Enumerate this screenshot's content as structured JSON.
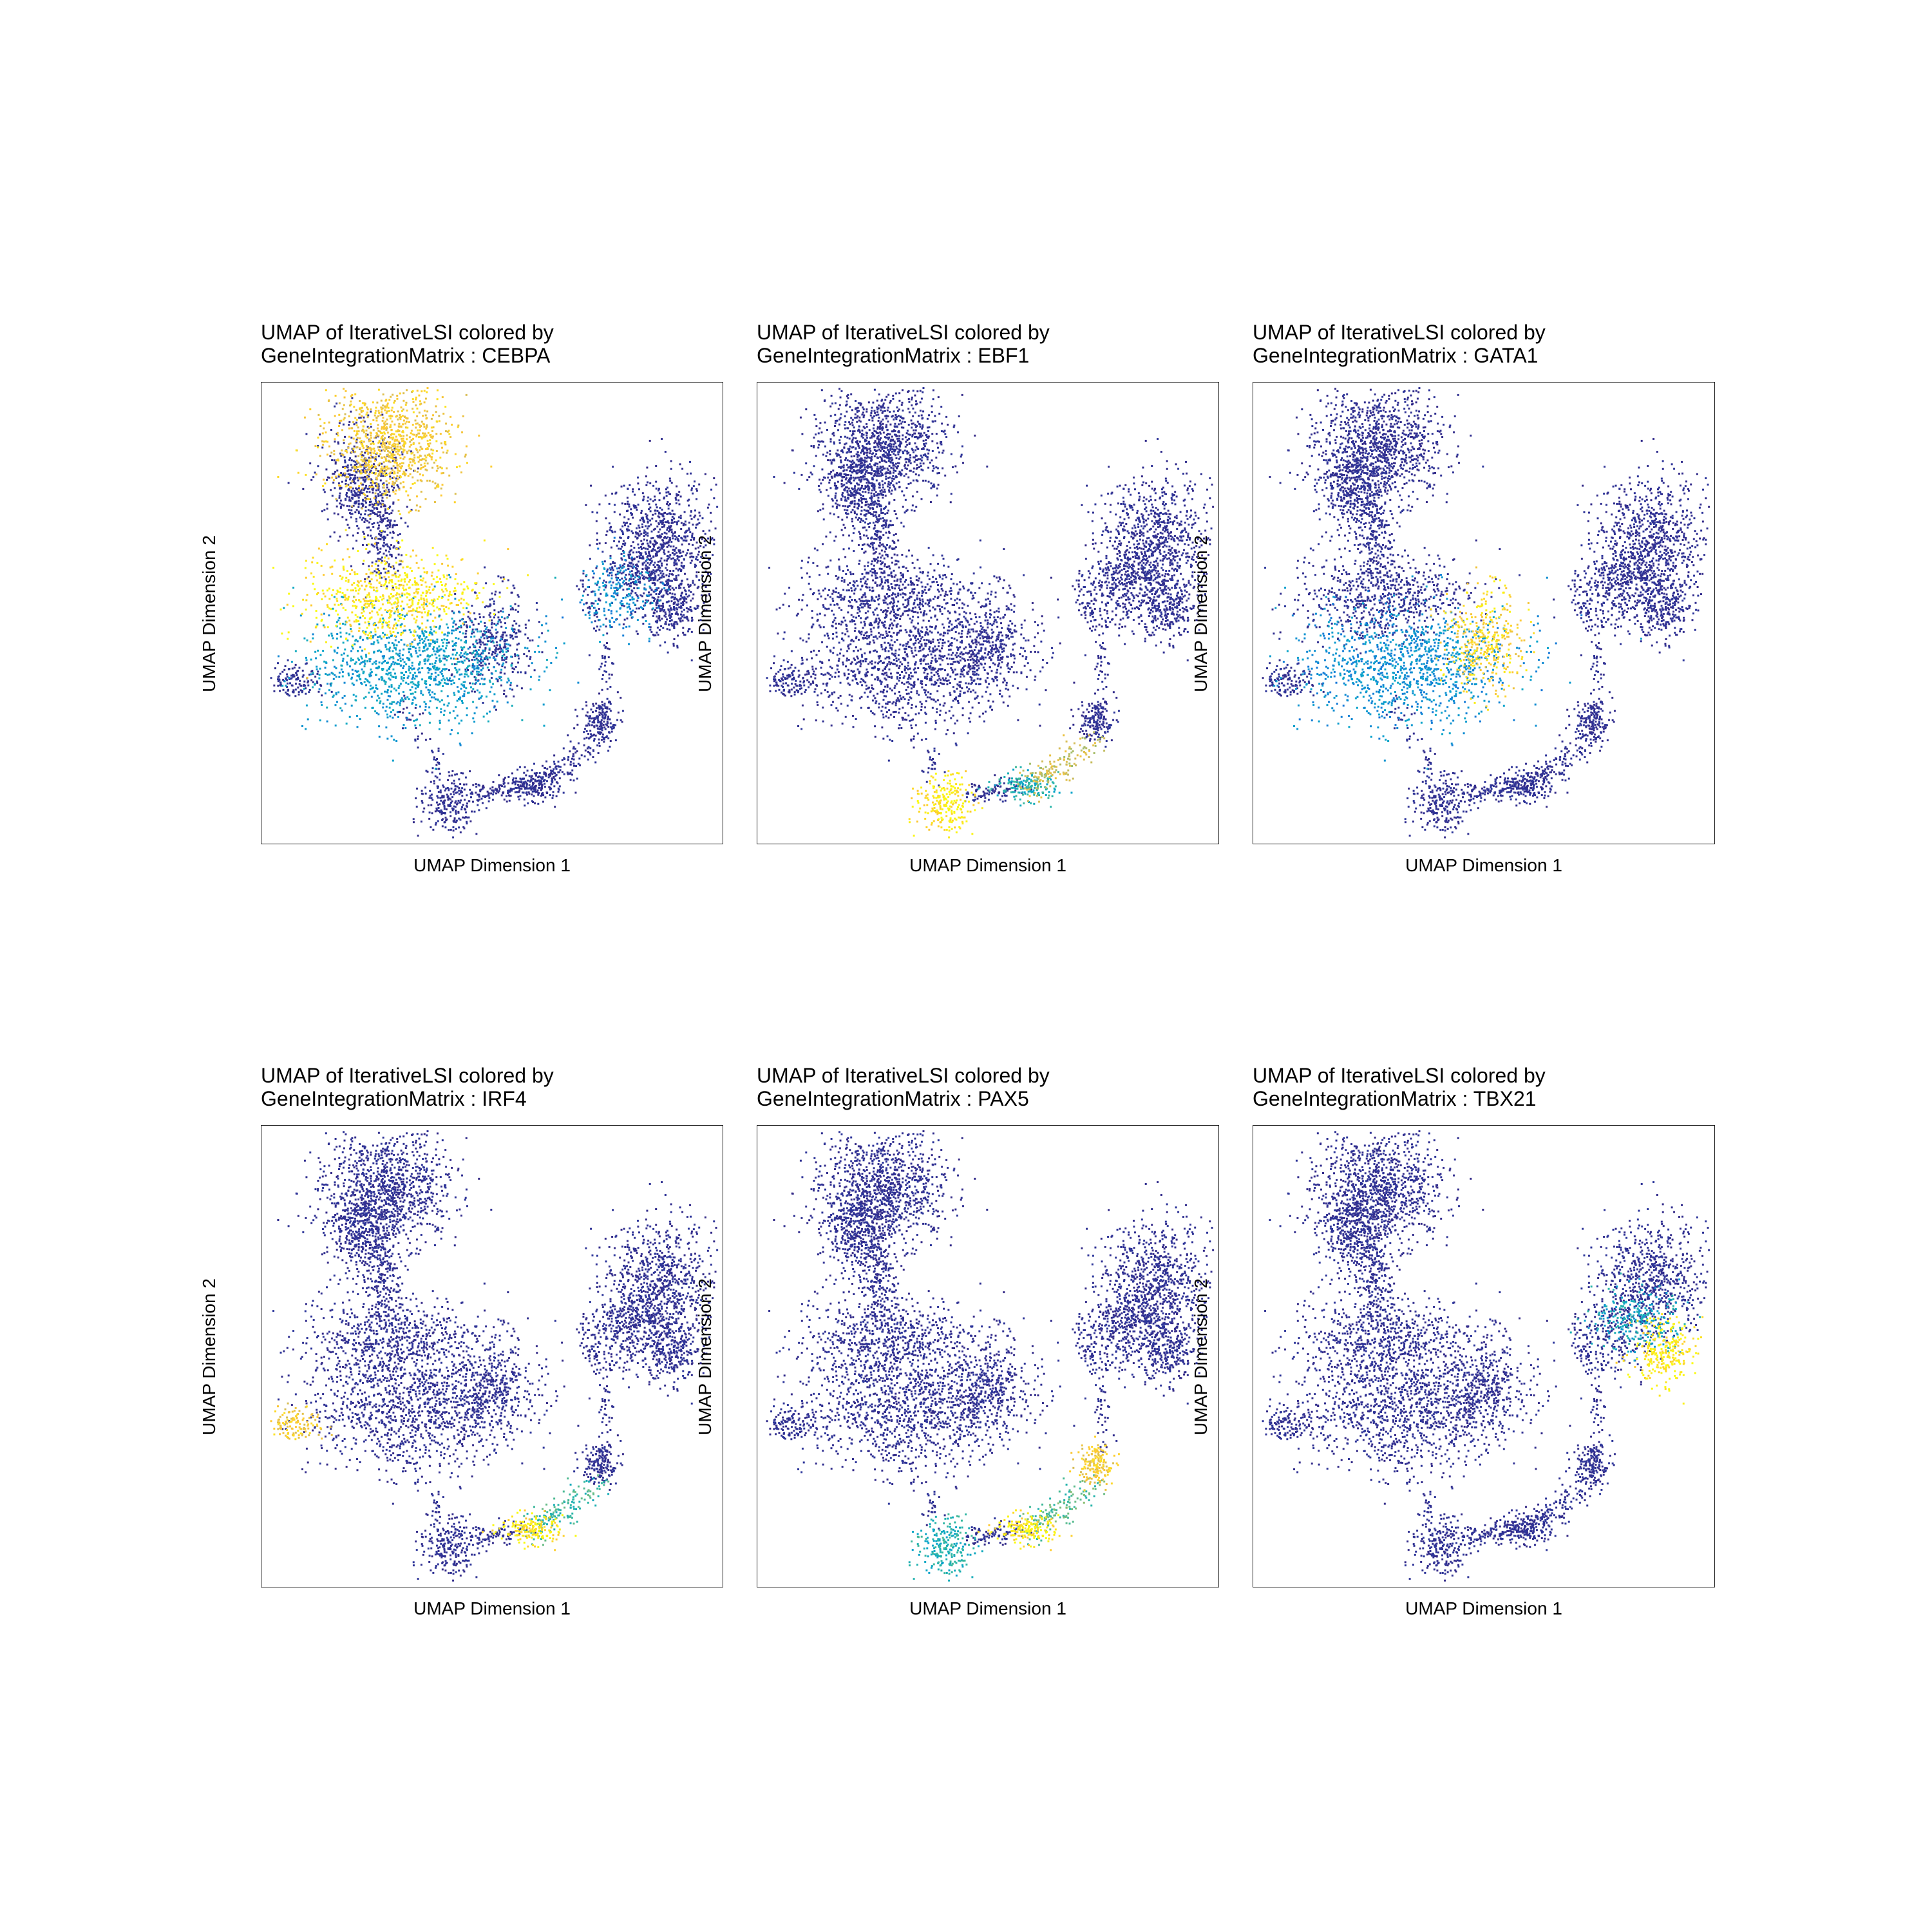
{
  "chart_data": [
    {
      "type": "scatter",
      "title": "UMAP of IterativeLSI colored by\nGeneIntegrationMatrix : CEBPA",
      "xlabel": "UMAP Dimension 1",
      "ylabel": "UMAP Dimension 2",
      "gene": "CEBPA",
      "grid": false,
      "highlights": [
        {
          "cluster": "top",
          "value": 0.85
        },
        {
          "cluster": "center_upper",
          "value": 0.95
        },
        {
          "cluster": "center_lower",
          "value": 0.35
        },
        {
          "cluster": "right_lower",
          "value": 0.3
        }
      ]
    },
    {
      "type": "scatter",
      "title": "UMAP of IterativeLSI colored by\nGeneIntegrationMatrix : EBF1",
      "xlabel": "UMAP Dimension 1",
      "ylabel": "UMAP Dimension 2",
      "gene": "EBF1",
      "grid": false,
      "highlights": [
        {
          "cluster": "bottom_blob",
          "value": 0.95
        },
        {
          "cluster": "bottom_arm",
          "value": 0.75
        },
        {
          "cluster": "bottom_mid",
          "value": 0.45
        }
      ]
    },
    {
      "type": "scatter",
      "title": "UMAP of IterativeLSI colored by\nGeneIntegrationMatrix : GATA1",
      "xlabel": "UMAP Dimension 1",
      "ylabel": "UMAP Dimension 2",
      "gene": "GATA1",
      "grid": false,
      "highlights": [
        {
          "cluster": "right_lobe",
          "value": 0.9
        },
        {
          "cluster": "center_lower",
          "value": 0.3
        }
      ]
    },
    {
      "type": "scatter",
      "title": "UMAP of IterativeLSI colored by\nGeneIntegrationMatrix : IRF4",
      "xlabel": "UMAP Dimension 1",
      "ylabel": "UMAP Dimension 2",
      "gene": "IRF4",
      "grid": false,
      "highlights": [
        {
          "cluster": "left_tail",
          "value": 0.85
        },
        {
          "cluster": "bottom_mid",
          "value": 0.95
        },
        {
          "cluster": "bottom_arm",
          "value": 0.5
        }
      ]
    },
    {
      "type": "scatter",
      "title": "UMAP of IterativeLSI colored by\nGeneIntegrationMatrix : PAX5",
      "xlabel": "UMAP Dimension 1",
      "ylabel": "UMAP Dimension 2",
      "gene": "PAX5",
      "grid": false,
      "highlights": [
        {
          "cluster": "small_blob",
          "value": 0.85
        },
        {
          "cluster": "bottom_mid",
          "value": 0.95
        },
        {
          "cluster": "bottom_blob",
          "value": 0.45
        },
        {
          "cluster": "bottom_arm",
          "value": 0.55
        }
      ]
    },
    {
      "type": "scatter",
      "title": "UMAP of IterativeLSI colored by\nGeneIntegrationMatrix : TBX21",
      "xlabel": "UMAP Dimension 1",
      "ylabel": "UMAP Dimension 2",
      "gene": "TBX21",
      "grid": false,
      "highlights": [
        {
          "cluster": "right_lower_sub",
          "value": 0.95
        },
        {
          "cluster": "right_mid_sub",
          "value": 0.4
        }
      ]
    }
  ],
  "colors": {
    "palette": [
      "#352A87",
      "#0F5CDD",
      "#1481D6",
      "#06A4CA",
      "#2EB7A4",
      "#87BF77",
      "#D1BB59",
      "#FEC832",
      "#F9FB0E"
    ],
    "frame": "#222222",
    "text": "#000000"
  }
}
